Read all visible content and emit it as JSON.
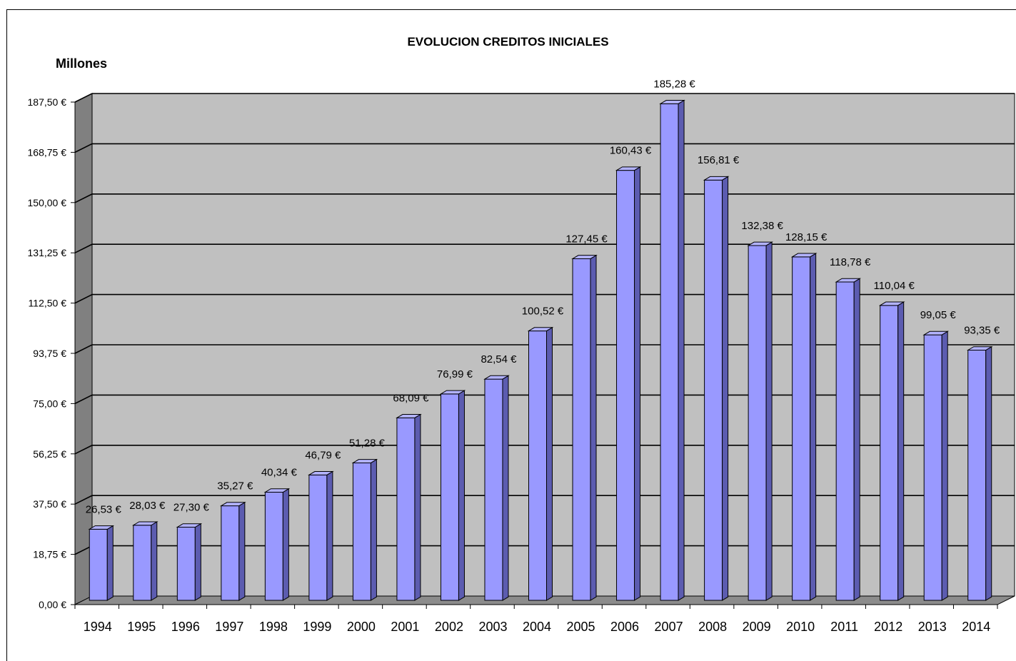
{
  "chart_data": {
    "type": "bar",
    "title": "EVOLUCION CREDITOS INICIALES",
    "ylabel": "Millones",
    "categories": [
      "1994",
      "1995",
      "1996",
      "1997",
      "1998",
      "1999",
      "2000",
      "2001",
      "2002",
      "2003",
      "2004",
      "2005",
      "2006",
      "2007",
      "2008",
      "2009",
      "2010",
      "2011",
      "2012",
      "2013",
      "2014"
    ],
    "values": [
      26.53,
      28.03,
      27.3,
      35.27,
      40.34,
      46.79,
      51.28,
      68.09,
      76.99,
      82.54,
      100.52,
      127.45,
      160.43,
      185.28,
      156.81,
      132.38,
      128.15,
      118.78,
      110.04,
      99.05,
      93.35
    ],
    "value_labels": [
      "26,53 €",
      "28,03 €",
      "27,30 €",
      "35,27 €",
      "40,34 €",
      "46,79 €",
      "51,28 €",
      "68,09 €",
      "76,99 €",
      "82,54 €",
      "100,52 €",
      "127,45 €",
      "160,43 €",
      "185,28 €",
      "156,81 €",
      "132,38 €",
      "128,15 €",
      "118,78 €",
      "110,04 €",
      "99,05 €",
      "93,35 €"
    ],
    "y_ticks": [
      0,
      18.75,
      37.5,
      56.25,
      75,
      93.75,
      112.5,
      131.25,
      150,
      168.75,
      187.5
    ],
    "y_tick_labels": [
      "0,00 €",
      "18,75 €",
      "37,50 €",
      "56,25 €",
      "75,00 €",
      "93,75 €",
      "112,50 €",
      "131,25 €",
      "150,00 €",
      "168,75 €",
      "187,50 €"
    ],
    "ylim": [
      0,
      187.5
    ],
    "grid": true,
    "colors": {
      "bar_front": "#9999ff",
      "bar_side": "#5c5cb0",
      "bar_top": "#b3b3ff",
      "plot_back": "#c0c0c0",
      "plot_wall": "#808080",
      "plot_floor": "#8c8c8c"
    }
  }
}
